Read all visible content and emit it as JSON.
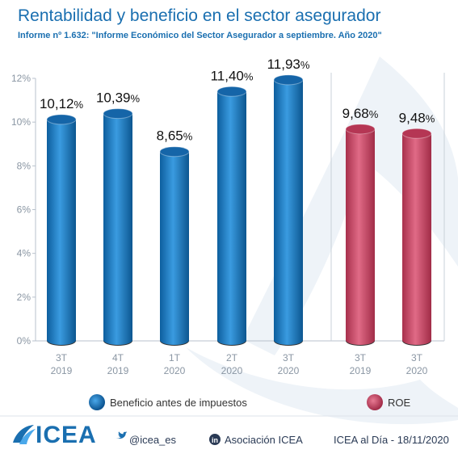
{
  "title": "Rentabilidad y beneficio en el sector asegurador",
  "subtitle": "Informe nº 1.632: \"Informe Económico del Sector Asegurador a septiembre. Año 2020\"",
  "chart_data": {
    "type": "bar",
    "y_ticks": [
      "0%",
      "2%",
      "4%",
      "6%",
      "8%",
      "10%",
      "12%"
    ],
    "ylim": [
      0,
      12
    ],
    "grid": false,
    "legend_position": "bottom",
    "series": [
      {
        "name": "Beneficio antes de impuestos",
        "color": "#1a78c2",
        "points": [
          {
            "cat_line1": "3T",
            "cat_line2": "2019",
            "value": 10.12,
            "label": "10,12",
            "unit": "%"
          },
          {
            "cat_line1": "4T",
            "cat_line2": "2019",
            "value": 10.39,
            "label": "10,39",
            "unit": "%"
          },
          {
            "cat_line1": "1T",
            "cat_line2": "2020",
            "value": 8.65,
            "label": "8,65",
            "unit": "%"
          },
          {
            "cat_line1": "2T",
            "cat_line2": "2020",
            "value": 11.4,
            "label": "11,40",
            "unit": "%"
          },
          {
            "cat_line1": "3T",
            "cat_line2": "2020",
            "value": 11.93,
            "label": "11,93",
            "unit": "%"
          }
        ]
      },
      {
        "name": "ROE",
        "color": "#c8405f",
        "points": [
          {
            "cat_line1": "3T",
            "cat_line2": "2019",
            "value": 9.68,
            "label": "9,68",
            "unit": "%"
          },
          {
            "cat_line1": "3T",
            "cat_line2": "2020",
            "value": 9.48,
            "label": "9,48",
            "unit": "%"
          }
        ]
      }
    ]
  },
  "footer": {
    "logo_text": "ICEA",
    "twitter": "@icea_es",
    "linkedin": "Asociación ICEA",
    "date_note": "ICEA al Día - 18/11/2020"
  }
}
